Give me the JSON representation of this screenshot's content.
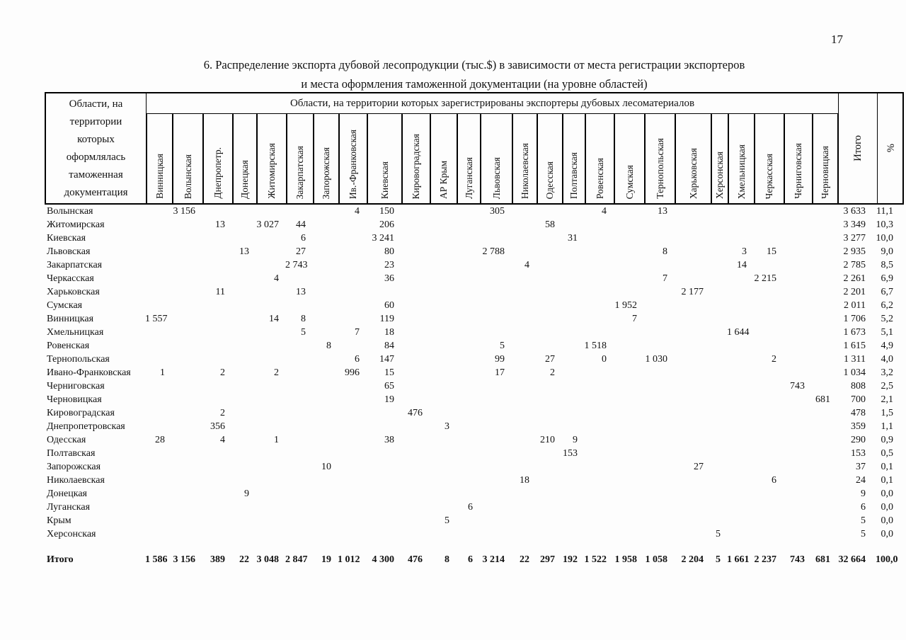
{
  "page": {
    "number": "17"
  },
  "title": {
    "line1": "6. Распределение экспорта дубовой лесопродукции (тыс.$) в зависимости от места регистрации экспортеров",
    "line2": "и места оформления таможенной документации (на уровне областей)"
  },
  "table": {
    "corner_header": "Области, на территории которых оформлялась таможенная документация",
    "top_header": "Области, на территории которых зарегистрированы экспортеры дубовых лесоматериалов",
    "columns": [
      "Винницкая",
      "Волынская",
      "Днепропетр.",
      "Донецкая",
      "Житомирская",
      "Закарпатская",
      "Запорожская",
      "Ив.-Франковская",
      "Киевская",
      "Кировоградская",
      "АР Крым",
      "Луганская",
      "Львовская",
      "Николаевская",
      "Одесская",
      "Полтавская",
      "Ровенская",
      "Сумская",
      "Тернопольская",
      "Харьковская",
      "Херсонская",
      "Хмельницкая",
      "Черкасская",
      "Черниговская",
      "Черновицкая"
    ],
    "total_col": "Итого",
    "percent_col": "%",
    "rows": [
      {
        "label": "Волынская",
        "values": [
          "",
          "3 156",
          "",
          "",
          "",
          "",
          "",
          "4",
          "150",
          "",
          "",
          "",
          "305",
          "",
          "",
          "",
          "4",
          "",
          "13",
          "",
          "",
          "",
          "",
          "",
          ""
        ],
        "total": "3 633",
        "percent": "11,1"
      },
      {
        "label": "Житомирская",
        "values": [
          "",
          "",
          "13",
          "",
          "3 027",
          "44",
          "",
          "",
          "206",
          "",
          "",
          "",
          "",
          "",
          "58",
          "",
          "",
          "",
          "",
          "",
          "",
          "",
          "",
          "",
          ""
        ],
        "total": "3 349",
        "percent": "10,3"
      },
      {
        "label": "Киевская",
        "values": [
          "",
          "",
          "",
          "",
          "",
          "6",
          "",
          "",
          "3 241",
          "",
          "",
          "",
          "",
          "",
          "",
          "31",
          "",
          "",
          "",
          "",
          "",
          "",
          "",
          "",
          ""
        ],
        "total": "3 277",
        "percent": "10,0"
      },
      {
        "label": "Львовская",
        "values": [
          "",
          "",
          "",
          "13",
          "",
          "27",
          "",
          "",
          "80",
          "",
          "",
          "",
          "2 788",
          "",
          "",
          "",
          "",
          "",
          "8",
          "",
          "",
          "3",
          "15",
          "",
          ""
        ],
        "total": "2 935",
        "percent": "9,0"
      },
      {
        "label": "Закарпатская",
        "values": [
          "",
          "",
          "",
          "",
          "",
          "2 743",
          "",
          "",
          "23",
          "",
          "",
          "",
          "",
          "4",
          "",
          "",
          "",
          "",
          "",
          "",
          "",
          "14",
          "",
          "",
          ""
        ],
        "total": "2 785",
        "percent": "8,5"
      },
      {
        "label": "Черкасская",
        "values": [
          "",
          "",
          "",
          "",
          "4",
          "",
          "",
          "",
          "36",
          "",
          "",
          "",
          "",
          "",
          "",
          "",
          "",
          "",
          "7",
          "",
          "",
          "",
          "2 215",
          "",
          ""
        ],
        "total": "2 261",
        "percent": "6,9"
      },
      {
        "label": "Харьковская",
        "values": [
          "",
          "",
          "11",
          "",
          "",
          "13",
          "",
          "",
          "",
          "",
          "",
          "",
          "",
          "",
          "",
          "",
          "",
          "",
          "",
          "2 177",
          "",
          "",
          "",
          "",
          ""
        ],
        "total": "2 201",
        "percent": "6,7"
      },
      {
        "label": "Сумская",
        "values": [
          "",
          "",
          "",
          "",
          "",
          "",
          "",
          "",
          "60",
          "",
          "",
          "",
          "",
          "",
          "",
          "",
          "",
          "1 952",
          "",
          "",
          "",
          "",
          "",
          "",
          ""
        ],
        "total": "2 011",
        "percent": "6,2"
      },
      {
        "label": "Винницкая",
        "values": [
          "1 557",
          "",
          "",
          "",
          "14",
          "8",
          "",
          "",
          "119",
          "",
          "",
          "",
          "",
          "",
          "",
          "",
          "",
          "7",
          "",
          "",
          "",
          "",
          "",
          "",
          ""
        ],
        "total": "1 706",
        "percent": "5,2"
      },
      {
        "label": "Хмельницкая",
        "values": [
          "",
          "",
          "",
          "",
          "",
          "5",
          "",
          "7",
          "18",
          "",
          "",
          "",
          "",
          "",
          "",
          "",
          "",
          "",
          "",
          "",
          "",
          "1 644",
          "",
          "",
          ""
        ],
        "total": "1 673",
        "percent": "5,1"
      },
      {
        "label": "Ровенская",
        "values": [
          "",
          "",
          "",
          "",
          "",
          "",
          "8",
          "",
          "84",
          "",
          "",
          "",
          "5",
          "",
          "",
          "",
          "1 518",
          "",
          "",
          "",
          "",
          "",
          "",
          "",
          ""
        ],
        "total": "1 615",
        "percent": "4,9"
      },
      {
        "label": "Тернопольская",
        "values": [
          "",
          "",
          "",
          "",
          "",
          "",
          "",
          "6",
          "147",
          "",
          "",
          "",
          "99",
          "",
          "27",
          "",
          "0",
          "",
          "1 030",
          "",
          "",
          "",
          "2",
          "",
          ""
        ],
        "total": "1 311",
        "percent": "4,0"
      },
      {
        "label": "Ивано-Франковская",
        "values": [
          "1",
          "",
          "2",
          "",
          "2",
          "",
          "",
          "996",
          "15",
          "",
          "",
          "",
          "17",
          "",
          "2",
          "",
          "",
          "",
          "",
          "",
          "",
          "",
          "",
          "",
          ""
        ],
        "total": "1 034",
        "percent": "3,2"
      },
      {
        "label": "Черниговская",
        "values": [
          "",
          "",
          "",
          "",
          "",
          "",
          "",
          "",
          "65",
          "",
          "",
          "",
          "",
          "",
          "",
          "",
          "",
          "",
          "",
          "",
          "",
          "",
          "",
          "743",
          ""
        ],
        "total": "808",
        "percent": "2,5"
      },
      {
        "label": "Черновицкая",
        "values": [
          "",
          "",
          "",
          "",
          "",
          "",
          "",
          "",
          "19",
          "",
          "",
          "",
          "",
          "",
          "",
          "",
          "",
          "",
          "",
          "",
          "",
          "",
          "",
          "",
          "681"
        ],
        "total": "700",
        "percent": "2,1"
      },
      {
        "label": "Кировоградская",
        "values": [
          "",
          "",
          "2",
          "",
          "",
          "",
          "",
          "",
          "",
          "476",
          "",
          "",
          "",
          "",
          "",
          "",
          "",
          "",
          "",
          "",
          "",
          "",
          "",
          "",
          ""
        ],
        "total": "478",
        "percent": "1,5"
      },
      {
        "label": "Днепропетровская",
        "values": [
          "",
          "",
          "356",
          "",
          "",
          "",
          "",
          "",
          "",
          "",
          "3",
          "",
          "",
          "",
          "",
          "",
          "",
          "",
          "",
          "",
          "",
          "",
          "",
          "",
          ""
        ],
        "total": "359",
        "percent": "1,1"
      },
      {
        "label": "Одесская",
        "values": [
          "28",
          "",
          "4",
          "",
          "1",
          "",
          "",
          "",
          "38",
          "",
          "",
          "",
          "",
          "",
          "210",
          "9",
          "",
          "",
          "",
          "",
          "",
          "",
          "",
          "",
          ""
        ],
        "total": "290",
        "percent": "0,9"
      },
      {
        "label": "Полтавская",
        "values": [
          "",
          "",
          "",
          "",
          "",
          "",
          "",
          "",
          "",
          "",
          "",
          "",
          "",
          "",
          "",
          "153",
          "",
          "",
          "",
          "",
          "",
          "",
          "",
          "",
          ""
        ],
        "total": "153",
        "percent": "0,5"
      },
      {
        "label": "Запорожская",
        "values": [
          "",
          "",
          "",
          "",
          "",
          "",
          "10",
          "",
          "",
          "",
          "",
          "",
          "",
          "",
          "",
          "",
          "",
          "",
          "",
          "27",
          "",
          "",
          "",
          "",
          ""
        ],
        "total": "37",
        "percent": "0,1"
      },
      {
        "label": "Николаевская",
        "values": [
          "",
          "",
          "",
          "",
          "",
          "",
          "",
          "",
          "",
          "",
          "",
          "",
          "",
          "18",
          "",
          "",
          "",
          "",
          "",
          "",
          "",
          "",
          "6",
          "",
          ""
        ],
        "total": "24",
        "percent": "0,1"
      },
      {
        "label": "Донецкая",
        "values": [
          "",
          "",
          "",
          "9",
          "",
          "",
          "",
          "",
          "",
          "",
          "",
          "",
          "",
          "",
          "",
          "",
          "",
          "",
          "",
          "",
          "",
          "",
          "",
          "",
          ""
        ],
        "total": "9",
        "percent": "0,0"
      },
      {
        "label": "Луганская",
        "values": [
          "",
          "",
          "",
          "",
          "",
          "",
          "",
          "",
          "",
          "",
          "",
          "6",
          "",
          "",
          "",
          "",
          "",
          "",
          "",
          "",
          "",
          "",
          "",
          "",
          ""
        ],
        "total": "6",
        "percent": "0,0"
      },
      {
        "label": "Крым",
        "values": [
          "",
          "",
          "",
          "",
          "",
          "",
          "",
          "",
          "",
          "",
          "5",
          "",
          "",
          "",
          "",
          "",
          "",
          "",
          "",
          "",
          "",
          "",
          "",
          "",
          ""
        ],
        "total": "5",
        "percent": "0,0"
      },
      {
        "label": "Херсонская",
        "values": [
          "",
          "",
          "",
          "",
          "",
          "",
          "",
          "",
          "",
          "",
          "",
          "",
          "",
          "",
          "",
          "",
          "",
          "",
          "",
          "",
          "5",
          "",
          "",
          "",
          ""
        ],
        "total": "5",
        "percent": "0,0"
      }
    ],
    "totals_row": {
      "label": "Итого",
      "values": [
        "1 586",
        "3 156",
        "389",
        "22",
        "3 048",
        "2 847",
        "19",
        "1 012",
        "4 300",
        "476",
        "8",
        "6",
        "3 214",
        "22",
        "297",
        "192",
        "1 522",
        "1 958",
        "1 058",
        "2 204",
        "5",
        "1 661",
        "2 237",
        "743",
        "681"
      ],
      "total": "32 664",
      "percent": "100,0"
    }
  }
}
